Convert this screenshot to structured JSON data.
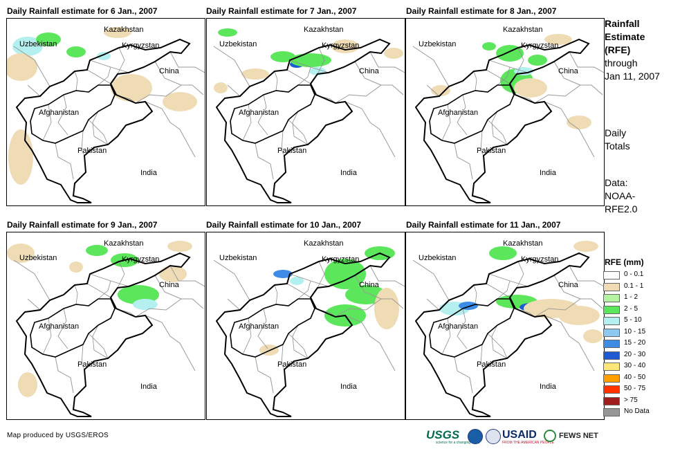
{
  "panels": [
    {
      "title": "Daily Rainfall estimate for 6 Jan., 2007"
    },
    {
      "title": "Daily Rainfall estimate for 7 Jan., 2007"
    },
    {
      "title": "Daily Rainfall estimate for 8 Jan., 2007"
    },
    {
      "title": "Daily Rainfall estimate for 9 Jan., 2007"
    },
    {
      "title": "Daily Rainfall estimate for 10 Jan., 2007"
    },
    {
      "title": "Daily Rainfall estimate for 11 Jan., 2007"
    }
  ],
  "countries": {
    "kazakhstan": "Kazakhstan",
    "uzbekistan": "Uzbekistan",
    "kyrgyzstan": "Kyrgyzstan",
    "china": "China",
    "afghanistan": "Afghanistan",
    "pakistan": "Pakistan",
    "india": "India"
  },
  "sidebar": {
    "title_lines": [
      "Rainfall",
      "Estimate",
      "(RFE)"
    ],
    "through_lines": [
      "through",
      "Jan 11, 2007"
    ],
    "daily_lines": [
      "Daily",
      "Totals"
    ],
    "data_lines": [
      "Data:",
      "NOAA-",
      "RFE2.0"
    ]
  },
  "legend": {
    "title": "RFE (mm)",
    "items": [
      {
        "label": "0 - 0.1",
        "color": "#ffffff"
      },
      {
        "label": "0.1 - 1",
        "color": "#f0dcb4"
      },
      {
        "label": "1 - 2",
        "color": "#b4f4a0"
      },
      {
        "label": "2 - 5",
        "color": "#5ce65c"
      },
      {
        "label": "5 - 10",
        "color": "#b4f0f0"
      },
      {
        "label": "10 - 15",
        "color": "#8cc8f0"
      },
      {
        "label": "15 - 20",
        "color": "#3c8ce6"
      },
      {
        "label": "20 - 30",
        "color": "#1e5ad2"
      },
      {
        "label": "30 - 40",
        "color": "#ffe678"
      },
      {
        "label": "40 - 50",
        "color": "#ffa000"
      },
      {
        "label": "50 - 75",
        "color": "#ff3200"
      },
      {
        "label": "> 75",
        "color": "#a01e1e"
      },
      {
        "label": "No Data",
        "color": "#969696"
      }
    ]
  },
  "credit": "Map produced by USGS/EROS",
  "logos": {
    "usgs": "USGS",
    "usgs_tagline": "science for a changing world",
    "noaa": "noaa-logo-icon",
    "dhs": "dhs-seal-icon",
    "usaid": "USAID",
    "usaid_tagline": "FROM THE AMERICAN PEOPLE",
    "fews": "FEWS NET"
  }
}
